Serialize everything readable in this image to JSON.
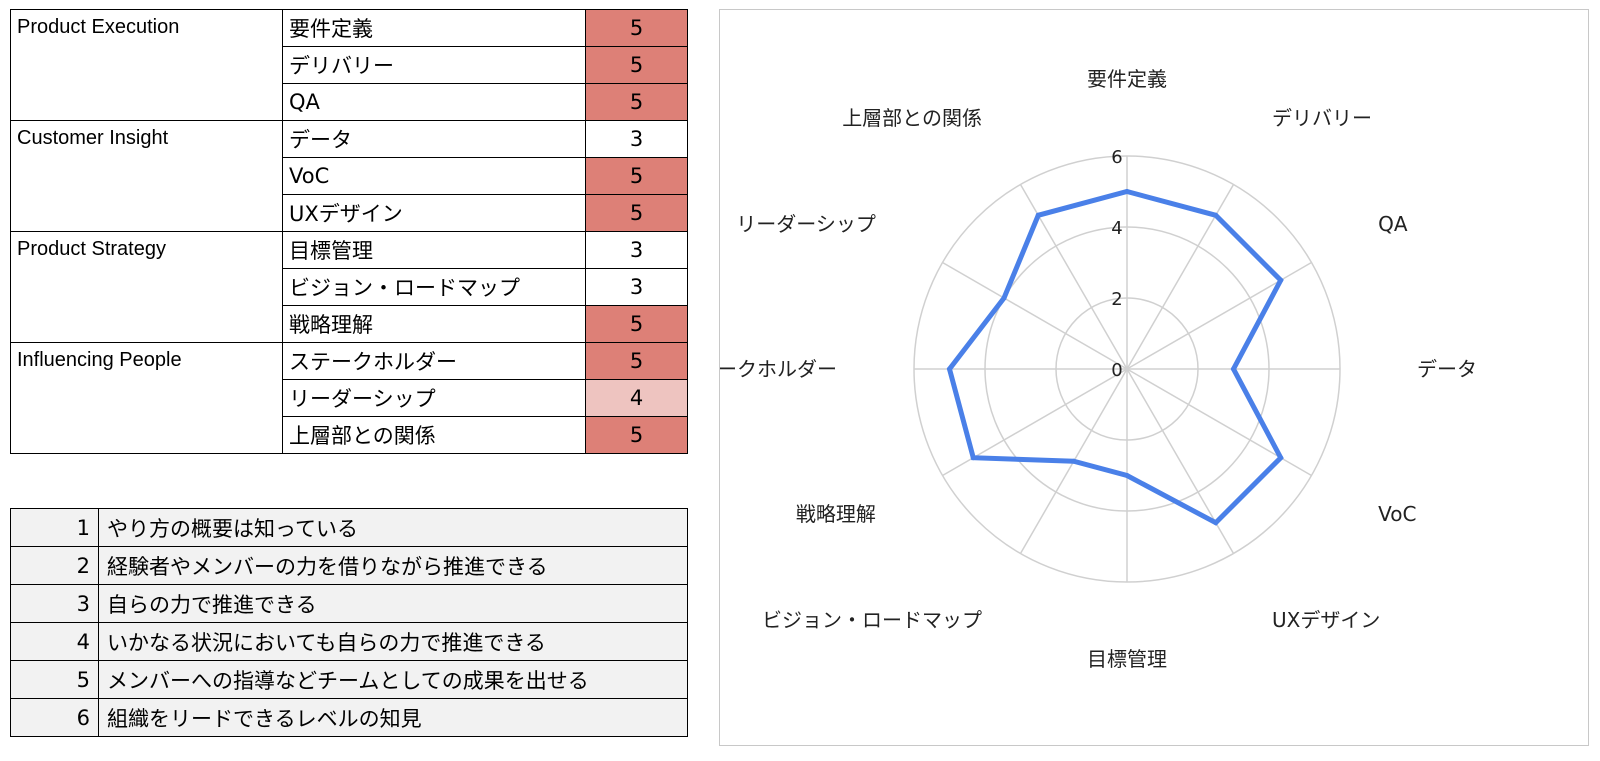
{
  "skills_table": {
    "groups": [
      {
        "category": "Product Execution",
        "items": [
          {
            "label": "要件定義",
            "score": "5"
          },
          {
            "label": "デリバリー",
            "score": "5"
          },
          {
            "label": "QA",
            "score": "5"
          }
        ]
      },
      {
        "category": "Customer Insight",
        "items": [
          {
            "label": "データ",
            "score": "3"
          },
          {
            "label": "VoC",
            "score": "5"
          },
          {
            "label": "UXデザイン",
            "score": "5"
          }
        ]
      },
      {
        "category": "Product Strategy",
        "items": [
          {
            "label": "目標管理",
            "score": "3"
          },
          {
            "label": "ビジョン・ロードマップ",
            "score": "3"
          },
          {
            "label": "戦略理解",
            "score": "5"
          }
        ]
      },
      {
        "category": "Influencing People",
        "items": [
          {
            "label": "ステークホルダー",
            "score": "5"
          },
          {
            "label": "リーダーシップ",
            "score": "4"
          },
          {
            "label": "上層部との関係",
            "score": "5"
          }
        ]
      }
    ]
  },
  "score_colors": {
    "5": "#dd8077",
    "4": "#eec4c0",
    "3": "#ffffff"
  },
  "legend": [
    {
      "level": "1",
      "text": "やり方の概要は知っている"
    },
    {
      "level": "2",
      "text": "経験者やメンバーの力を借りながら推進できる"
    },
    {
      "level": "3",
      "text": "自らの力で推進できる"
    },
    {
      "level": "4",
      "text": "いかなる状況においても自らの力で推進できる"
    },
    {
      "level": "5",
      "text": "メンバーへの指導などチームとしての成果を出せる"
    },
    {
      "level": "6",
      "text": "組織をリードできるレベルの知見"
    }
  ],
  "chart_data": {
    "type": "radar",
    "categories": [
      "要件定義",
      "デリバリー",
      "QA",
      "データ",
      "VoC",
      "UXデザイン",
      "目標管理",
      "ビジョン・ロードマップ",
      "戦略理解",
      "ステークホルダー",
      "リーダーシップ",
      "上層部との関係"
    ],
    "series": [
      {
        "values": [
          5,
          5,
          5,
          3,
          5,
          5,
          3,
          3,
          5,
          5,
          4,
          5
        ],
        "color": "#4a80e8"
      }
    ],
    "rlim": [
      0,
      6
    ],
    "ticks": [
      "0",
      "2",
      "4",
      "6"
    ],
    "grid": true,
    "grid_color": "#d0d0d0"
  }
}
